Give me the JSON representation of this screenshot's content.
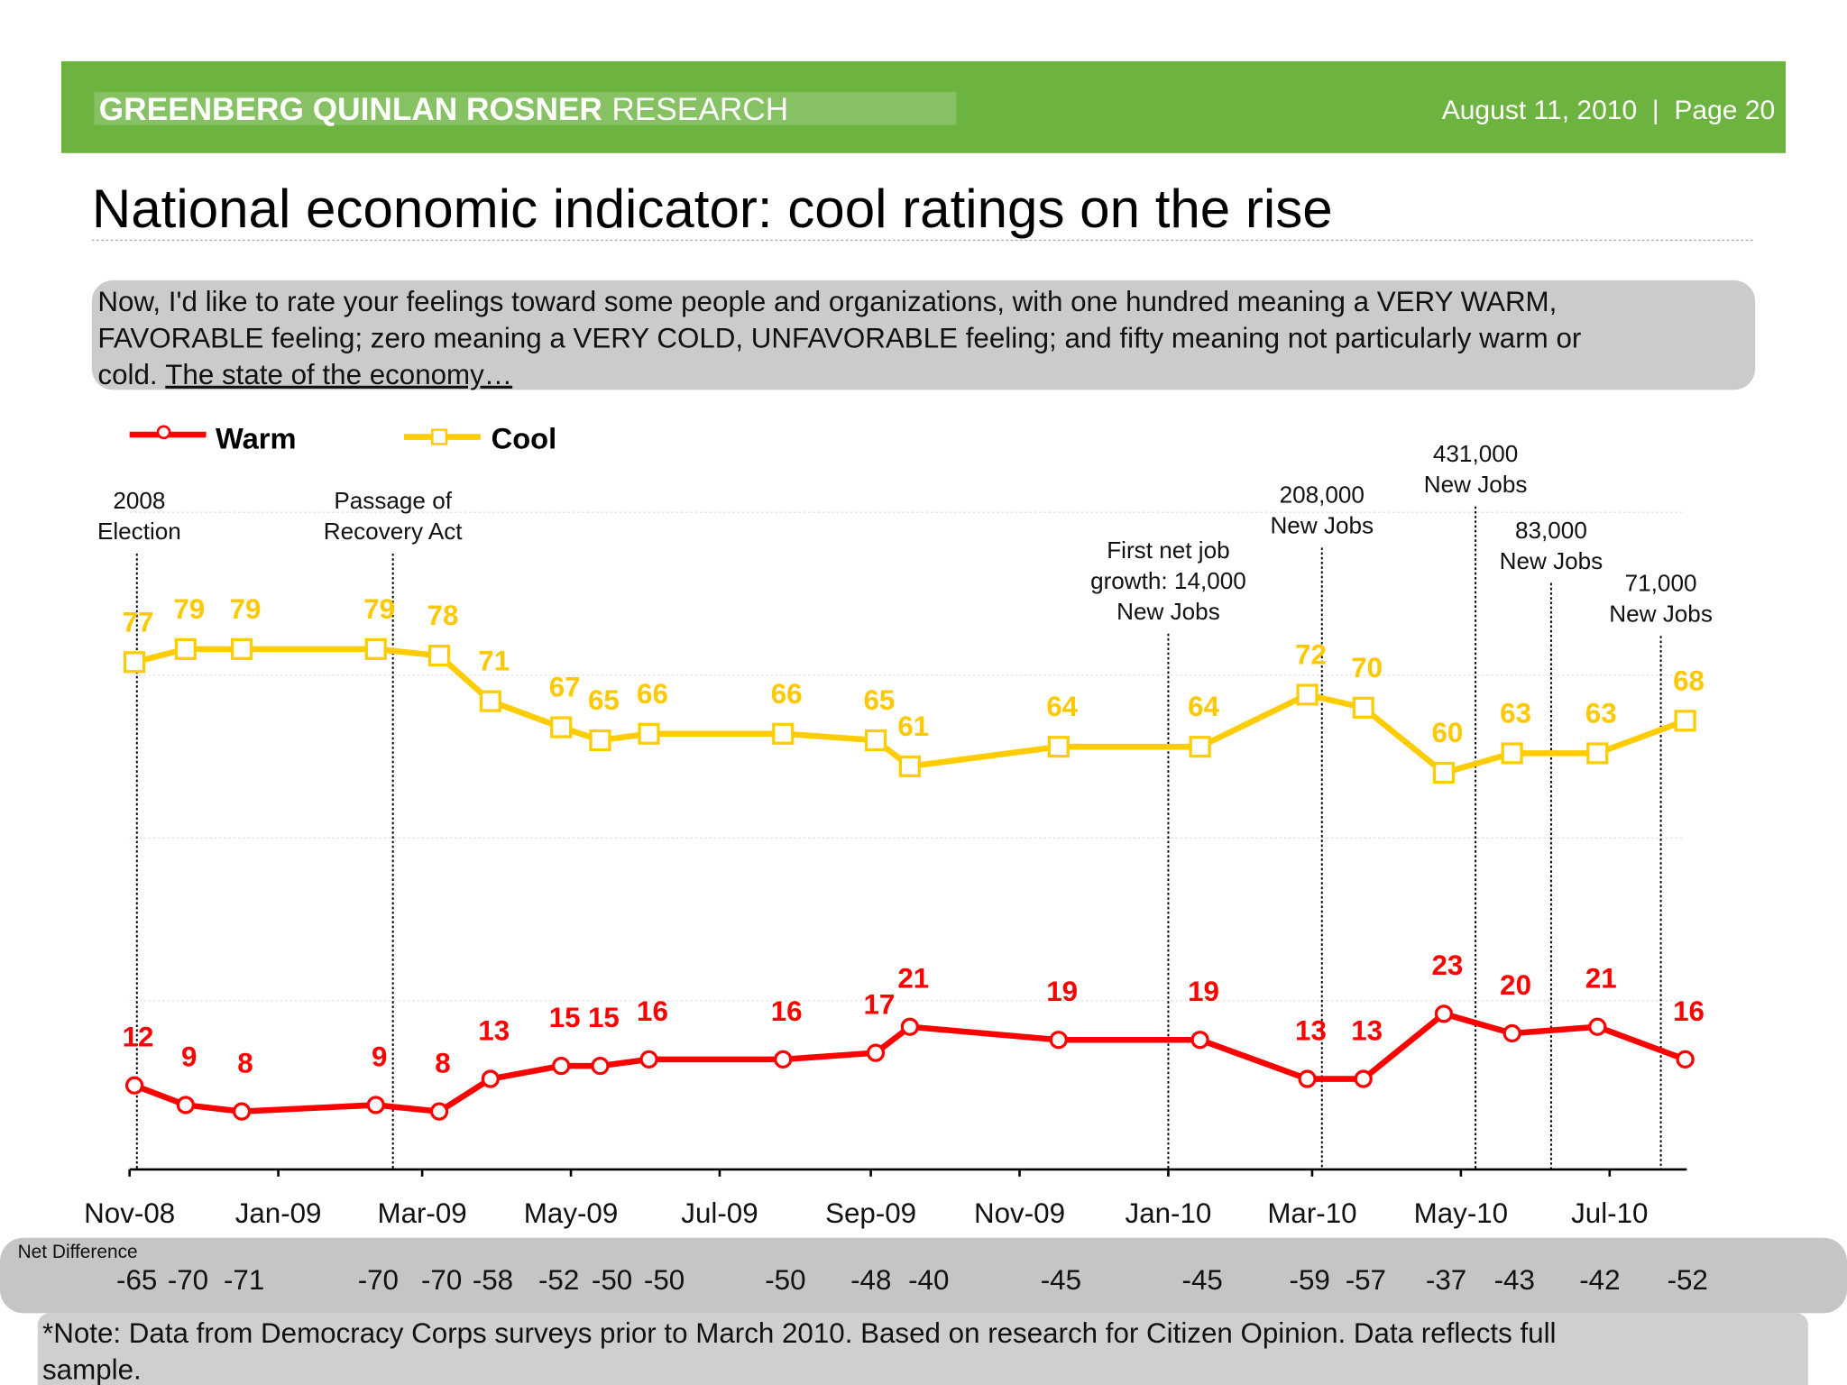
{
  "header": {
    "brand_bold": "GREENBERG QUINLAN ROSNER",
    "brand_light": "RESEARCH",
    "date_page": "August 11, 2010  |  Page 20",
    "color": "#6db33f"
  },
  "title": "National economic indicator: cool ratings on the rise",
  "question": {
    "line1": "Now, I'd like to rate your feelings toward some people and organizations, with one hundred meaning a VERY WARM,",
    "line2": "FAVORABLE feeling; zero meaning a VERY COLD, UNFAVORABLE feeling; and fifty meaning not particularly warm or",
    "line3_prefix": "cold. ",
    "line3_underlined": "The state of the economy…"
  },
  "net_difference_label": "Net Difference",
  "note": {
    "line1": "*Note: Data from Democracy Corps surveys prior to March 2010. Based on research for Citizen Opinion. Data reflects full",
    "line2": "sample."
  },
  "chart_data": {
    "type": "line",
    "ylim": [
      0,
      100
    ],
    "grid": true,
    "legend_placement": "top-left",
    "x_ticks": [
      "Nov-08",
      "Jan-09",
      "Mar-09",
      "May-09",
      "Jul-09",
      "Sep-09",
      "Nov-09",
      "Jan-10",
      "Mar-10",
      "May-10",
      "Jul-10"
    ],
    "x": [
      "2008-11-03",
      "2008-11-24",
      "2008-12-17",
      "2009-02-10",
      "2009-03-08",
      "2009-03-29",
      "2009-04-27",
      "2009-05-13",
      "2009-06-02",
      "2009-07-27",
      "2009-09-03",
      "2009-09-17",
      "2009-11-17",
      "2010-01-14",
      "2010-02-27",
      "2010-03-22",
      "2010-04-24",
      "2010-05-22",
      "2010-06-26",
      "2010-08-01"
    ],
    "series": [
      {
        "name": "Warm",
        "color": "#ff0000",
        "marker": "circle",
        "values": [
          12,
          9,
          8,
          9,
          8,
          13,
          15,
          15,
          16,
          16,
          17,
          21,
          19,
          19,
          13,
          13,
          23,
          20,
          21,
          16
        ]
      },
      {
        "name": "Cool",
        "color": "#ffcc00",
        "marker": "square",
        "values": [
          77,
          79,
          79,
          79,
          78,
          71,
          67,
          65,
          66,
          66,
          65,
          61,
          64,
          64,
          72,
          70,
          60,
          63,
          63,
          68
        ]
      }
    ],
    "net_difference": [
      "-65",
      "-70",
      "-71",
      "-70",
      "-70",
      "-58",
      "-52",
      "-50",
      "-50",
      "-50",
      "-48",
      "-40",
      "-45",
      "-45",
      "-59",
      "-57",
      "-37",
      "-43",
      "-42",
      "-52"
    ],
    "annotations": [
      {
        "date": "2008-11-04",
        "lines": [
          "2008",
          "Election"
        ]
      },
      {
        "date": "2009-02-17",
        "lines": [
          "Passage of",
          "Recovery Act"
        ]
      },
      {
        "date": "2010-01-01",
        "lines": [
          "First net job",
          "growth: 14,000",
          "New Jobs"
        ]
      },
      {
        "date": "2010-03-05",
        "lines": [
          "208,000",
          "New Jobs"
        ]
      },
      {
        "date": "2010-05-07",
        "lines": [
          "431,000",
          "New Jobs"
        ]
      },
      {
        "date": "2010-06-07",
        "lines": [
          "83,000",
          "New Jobs"
        ]
      },
      {
        "date": "2010-07-22",
        "lines": [
          "71,000",
          "New Jobs"
        ]
      }
    ]
  }
}
